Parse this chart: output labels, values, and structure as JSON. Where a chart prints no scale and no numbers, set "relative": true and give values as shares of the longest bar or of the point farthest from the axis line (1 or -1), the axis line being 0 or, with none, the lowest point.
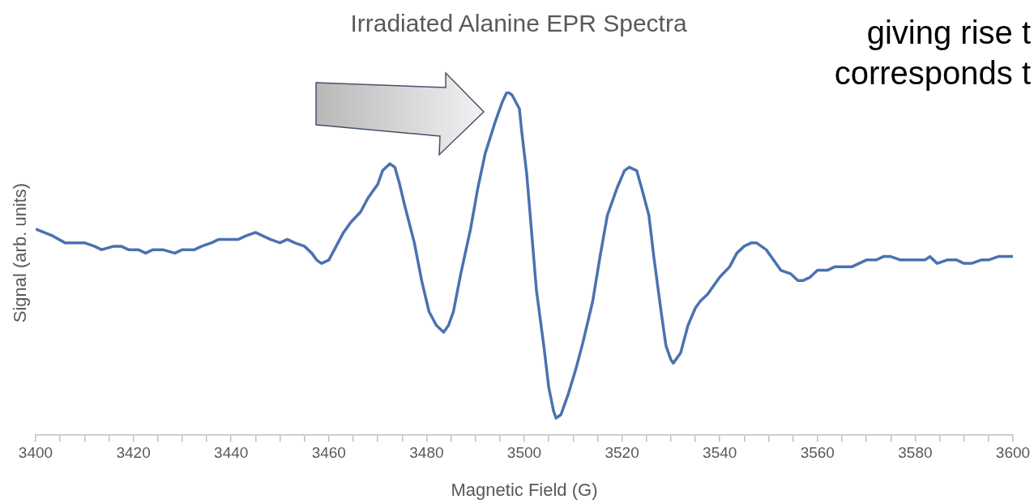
{
  "chart_data": {
    "type": "line",
    "title": "Irradiated Alanine EPR Spectra",
    "xlabel": "Magnetic Field (G)",
    "ylabel": "Signal (arb. units)",
    "relative": true,
    "grid": false,
    "legend": false,
    "marker": "none",
    "line_style": "solid",
    "annotations": [
      "giving rise t",
      "corresponds t"
    ],
    "xlim": [
      3400,
      3600
    ],
    "xticks": [
      3400,
      {
        "value": 3405,
        "label": null
      },
      {
        "value": 3410,
        "label": null
      },
      {
        "value": 3415,
        "label": null
      },
      3420,
      {
        "value": 3425,
        "label": null
      },
      {
        "value": 3430,
        "label": null
      },
      {
        "value": 3435,
        "label": null
      },
      3440,
      {
        "value": 3445,
        "label": null
      },
      {
        "value": 3450,
        "label": null
      },
      {
        "value": 3455,
        "label": null
      },
      3460,
      {
        "value": 3465,
        "label": null
      },
      {
        "value": 3470,
        "label": null
      },
      {
        "value": 3475,
        "label": null
      },
      3480,
      {
        "value": 3485,
        "label": null
      },
      {
        "value": 3490,
        "label": null
      },
      {
        "value": 3495,
        "label": null
      },
      3500,
      {
        "value": 3505,
        "label": null
      },
      {
        "value": 3510,
        "label": null
      },
      {
        "value": 3515,
        "label": null
      },
      3520,
      {
        "value": 3525,
        "label": null
      },
      {
        "value": 3530,
        "label": null
      },
      {
        "value": 3535,
        "label": null
      },
      3540,
      {
        "value": 3545,
        "label": null
      },
      {
        "value": 3550,
        "label": null
      },
      {
        "value": 3555,
        "label": null
      },
      3560,
      {
        "value": 3565,
        "label": null
      },
      {
        "value": 3570,
        "label": null
      },
      {
        "value": 3575,
        "label": null
      },
      3580,
      {
        "value": 3585,
        "label": null
      },
      {
        "value": 3590,
        "label": null
      },
      {
        "value": 3595,
        "label": null
      },
      3600
    ],
    "x": [
      3400,
      3403.5,
      3406,
      3408.5,
      3410,
      3412,
      3413.5,
      3416,
      3417.5,
      3419,
      3421,
      3422.5,
      3424,
      3426,
      3428.5,
      3430,
      3432.5,
      3434,
      3436,
      3437.5,
      3440,
      3441.5,
      3443,
      3445,
      3446.5,
      3448,
      3450,
      3451.5,
      3453,
      3455,
      3456.5,
      3457.5,
      3458.5,
      3460,
      3461.5,
      3463,
      3464.5,
      3466.5,
      3468,
      3470,
      3471,
      3472.5,
      3473.5,
      3474.5,
      3475.5,
      3477.5,
      3479,
      3480.5,
      3482,
      3483.5,
      3484.5,
      3485.5,
      3487,
      3489,
      3490.5,
      3492,
      3494,
      3495.5,
      3496.5,
      3497.5,
      3499,
      3499.5,
      3500.5,
      3501.5,
      3502.5,
      3504,
      3505,
      3506,
      3506.5,
      3507.5,
      3509,
      3510.5,
      3512,
      3514,
      3515.5,
      3517,
      3519,
      3520.5,
      3521.5,
      3523,
      3524,
      3525.5,
      3526.5,
      3528,
      3529,
      3530,
      3530.5,
      3532,
      3533.5,
      3535,
      3536,
      3537.5,
      3538.5,
      3540,
      3542,
      3543.5,
      3545,
      3546.5,
      3547.5,
      3549.5,
      3551,
      3552.5,
      3554.5,
      3556,
      3557,
      3558.5,
      3560,
      3562,
      3563.5,
      3565,
      3567,
      3568.5,
      3570,
      3572,
      3573.5,
      3575,
      3577,
      3578.5,
      3580,
      3582,
      3583,
      3584.5,
      3586.5,
      3588.5,
      3590,
      3591.5,
      3593.5,
      3595,
      3597,
      3598.5,
      3600
    ],
    "series": [
      {
        "color": "#4a72b0",
        "values": [
          0.6,
          0.58,
          0.56,
          0.56,
          0.56,
          0.55,
          0.54,
          0.55,
          0.55,
          0.54,
          0.54,
          0.53,
          0.54,
          0.54,
          0.53,
          0.54,
          0.54,
          0.55,
          0.56,
          0.57,
          0.57,
          0.57,
          0.58,
          0.59,
          0.58,
          0.57,
          0.56,
          0.57,
          0.56,
          0.55,
          0.53,
          0.51,
          0.5,
          0.51,
          0.55,
          0.59,
          0.62,
          0.65,
          0.69,
          0.73,
          0.77,
          0.79,
          0.78,
          0.73,
          0.67,
          0.56,
          0.45,
          0.36,
          0.32,
          0.3,
          0.32,
          0.36,
          0.47,
          0.6,
          0.72,
          0.82,
          0.91,
          0.97,
          1,
          0.99,
          0.95,
          0.88,
          0.76,
          0.59,
          0.42,
          0.26,
          0.14,
          0.07,
          0.05,
          0.06,
          0.12,
          0.19,
          0.27,
          0.39,
          0.52,
          0.64,
          0.72,
          0.77,
          0.78,
          0.77,
          0.72,
          0.64,
          0.52,
          0.36,
          0.26,
          0.22,
          0.21,
          0.24,
          0.32,
          0.37,
          0.39,
          0.41,
          0.43,
          0.46,
          0.49,
          0.53,
          0.55,
          0.56,
          0.56,
          0.54,
          0.51,
          0.48,
          0.47,
          0.45,
          0.45,
          0.46,
          0.48,
          0.48,
          0.49,
          0.49,
          0.49,
          0.5,
          0.51,
          0.51,
          0.52,
          0.52,
          0.51,
          0.51,
          0.51,
          0.51,
          0.52,
          0.5,
          0.51,
          0.51,
          0.5,
          0.5,
          0.51,
          0.51,
          0.52,
          0.52,
          0.52
        ]
      }
    ]
  }
}
